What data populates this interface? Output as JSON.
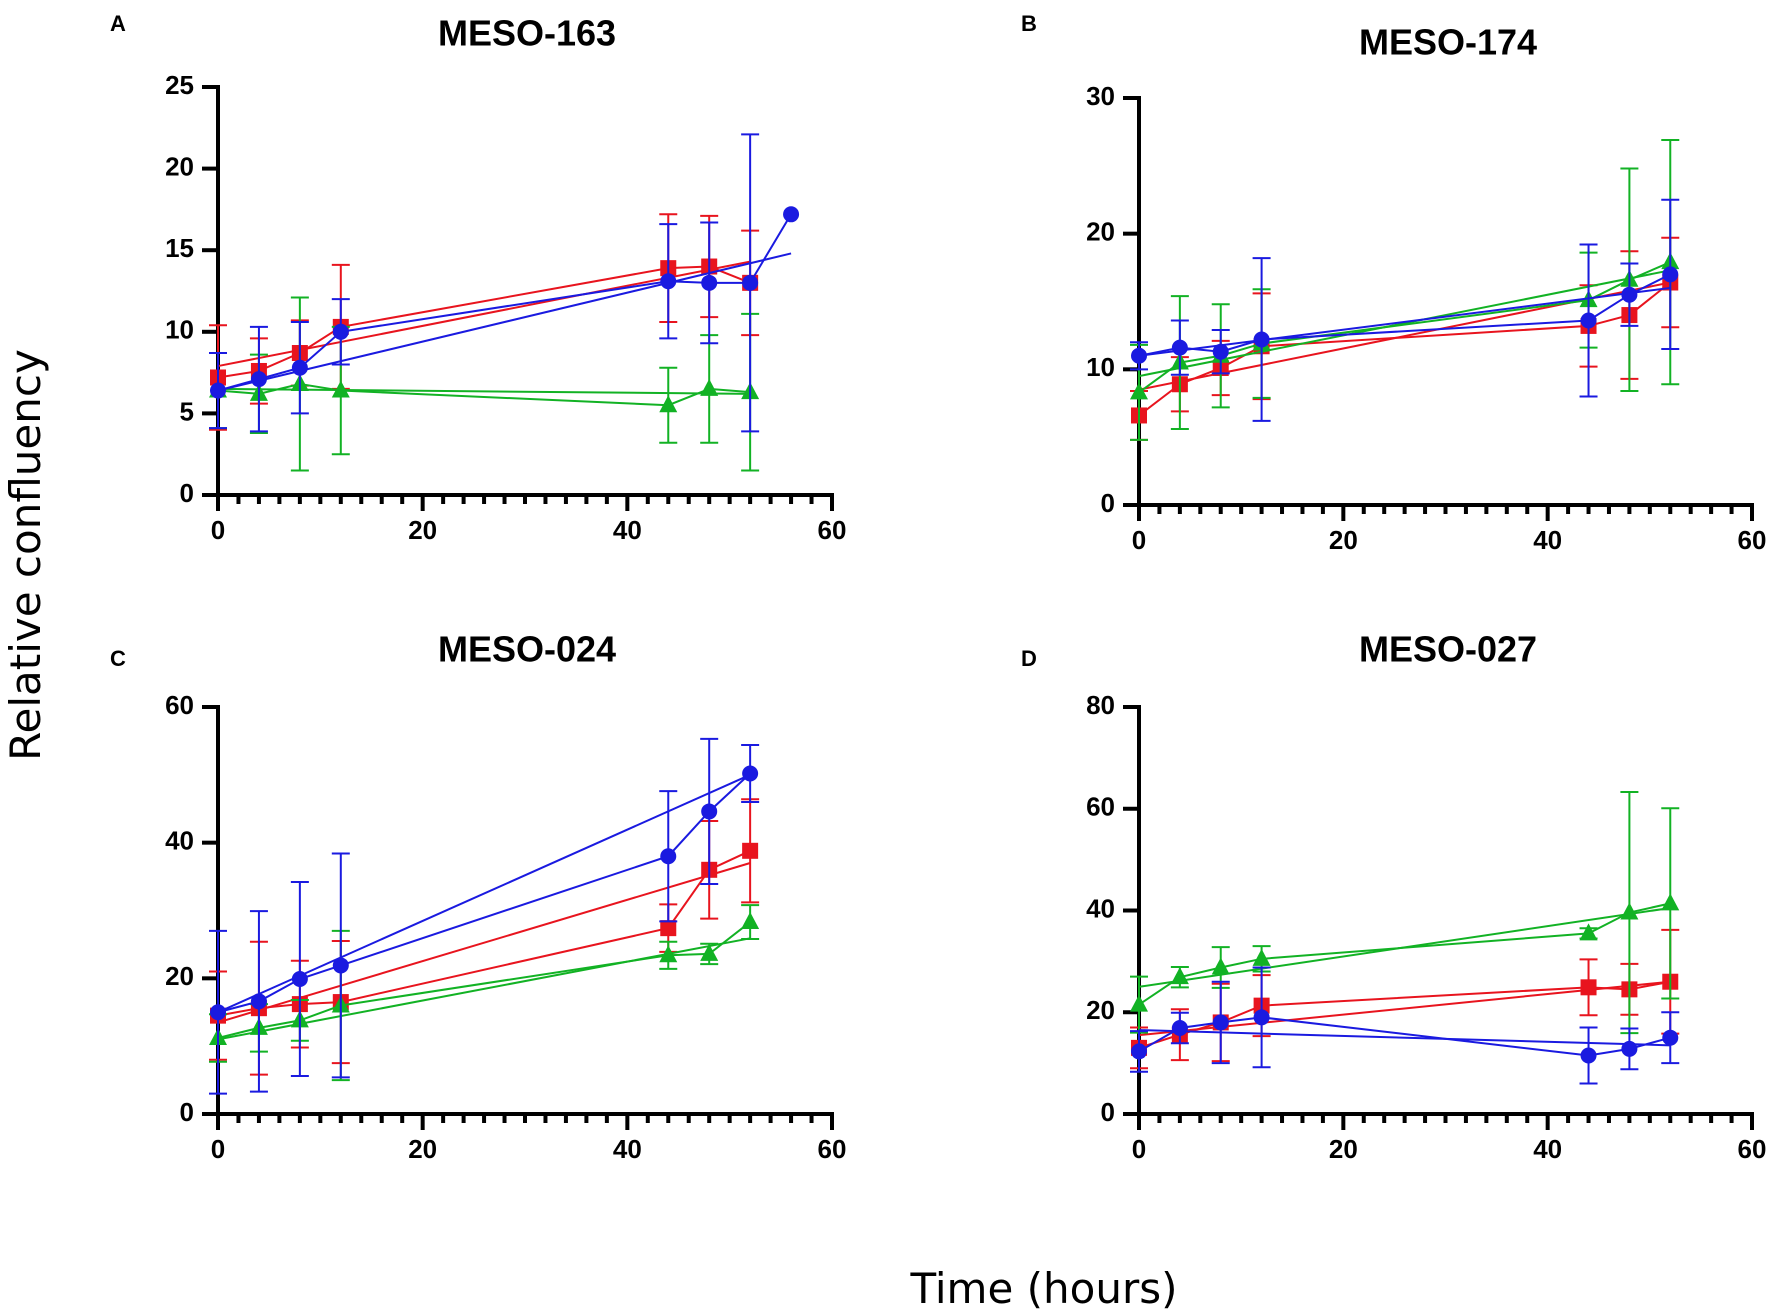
{
  "figure": {
    "ylabel": "Relative confluency",
    "xlabel": "Time (hours)"
  },
  "colors": {
    "red": "#e8141e",
    "green": "#12b224",
    "blue": "#1a1ae0"
  },
  "chart_data": [
    {
      "type": "line",
      "panel_letter": "A",
      "title": "MESO-163",
      "xlabel": "Time (hours)",
      "ylabel": "Relative confluency",
      "xlim": [
        0,
        60
      ],
      "ylim": [
        0,
        25
      ],
      "xticks": [
        0,
        20,
        40,
        60
      ],
      "yticks": [
        0,
        5,
        10,
        15,
        20,
        25
      ],
      "x_minor_step": 2,
      "series": [
        {
          "name": "red",
          "color": "#e8141e",
          "marker": "square",
          "x": [
            0,
            4,
            8,
            12,
            44,
            48,
            52
          ],
          "y": [
            7.2,
            7.6,
            8.7,
            10.3,
            13.9,
            14.0,
            13.0
          ],
          "err": [
            3.2,
            2.0,
            2.0,
            3.8,
            3.3,
            3.1,
            3.2
          ],
          "fit": [
            [
              0,
              7.9
            ],
            [
              52,
              14.3
            ]
          ]
        },
        {
          "name": "green",
          "color": "#12b224",
          "marker": "triangle",
          "x": [
            0,
            4,
            8,
            12,
            44,
            48,
            52
          ],
          "y": [
            6.4,
            6.2,
            6.8,
            6.4,
            5.5,
            6.5,
            6.3
          ],
          "err": [
            2.3,
            2.4,
            5.3,
            3.9,
            2.3,
            3.3,
            4.8
          ],
          "fit": [
            [
              0,
              6.5
            ],
            [
              52,
              6.2
            ]
          ]
        },
        {
          "name": "blue",
          "color": "#1a1ae0",
          "marker": "circle",
          "x": [
            0,
            4,
            8,
            12,
            44,
            48,
            52,
            56
          ],
          "y": [
            6.4,
            7.1,
            7.8,
            10.0,
            13.1,
            13.0,
            13.0,
            17.2
          ],
          "err": [
            2.3,
            3.2,
            2.8,
            2.0,
            3.5,
            3.7,
            9.1,
            0
          ],
          "fit": [
            [
              0,
              6.4
            ],
            [
              56,
              14.8
            ]
          ]
        }
      ]
    },
    {
      "type": "line",
      "panel_letter": "B",
      "title": "MESO-174",
      "xlabel": "Time (hours)",
      "ylabel": "Relative confluency",
      "xlim": [
        0,
        60
      ],
      "ylim": [
        0,
        30
      ],
      "xticks": [
        0,
        20,
        40,
        60
      ],
      "yticks": [
        0,
        10,
        20,
        30
      ],
      "x_minor_step": 2,
      "series": [
        {
          "name": "red",
          "color": "#e8141e",
          "marker": "square",
          "x": [
            0,
            4,
            8,
            12,
            44,
            48,
            52
          ],
          "y": [
            6.6,
            8.9,
            10.1,
            11.7,
            13.2,
            14.0,
            16.4
          ],
          "err": [
            1.8,
            2.0,
            2.0,
            3.9,
            3.0,
            4.7,
            3.3
          ],
          "fit": [
            [
              0,
              8.5
            ],
            [
              52,
              16.4
            ]
          ]
        },
        {
          "name": "green",
          "color": "#12b224",
          "marker": "triangle",
          "x": [
            0,
            4,
            8,
            12,
            44,
            48,
            52
          ],
          "y": [
            8.3,
            10.5,
            11.0,
            11.9,
            15.1,
            16.6,
            17.9
          ],
          "err": [
            3.5,
            4.9,
            3.8,
            4.0,
            3.5,
            8.2,
            9.0
          ],
          "fit": [
            [
              0,
              9.5
            ],
            [
              52,
              17.3
            ]
          ]
        },
        {
          "name": "blue",
          "color": "#1a1ae0",
          "marker": "circle",
          "x": [
            0,
            4,
            8,
            12,
            44,
            48,
            52
          ],
          "y": [
            11.0,
            11.6,
            11.3,
            12.2,
            13.6,
            15.5,
            17.0
          ],
          "err": [
            1.0,
            2.0,
            1.6,
            6.0,
            5.6,
            2.3,
            5.5
          ],
          "fit": [
            [
              0,
              11.0
            ],
            [
              52,
              16.0
            ]
          ]
        }
      ]
    },
    {
      "type": "line",
      "panel_letter": "C",
      "title": "MESO-024",
      "xlabel": "Time (hours)",
      "ylabel": "Relative confluency",
      "xlim": [
        0,
        60
      ],
      "ylim": [
        0,
        60
      ],
      "xticks": [
        0,
        20,
        40,
        60
      ],
      "yticks": [
        0,
        20,
        40,
        60
      ],
      "x_minor_step": 2,
      "series": [
        {
          "name": "red",
          "color": "#e8141e",
          "marker": "square",
          "x": [
            0,
            4,
            8,
            12,
            44,
            48,
            52
          ],
          "y": [
            14.5,
            15.6,
            16.2,
            16.5,
            27.4,
            36.0,
            38.8
          ],
          "err": [
            6.5,
            9.8,
            6.4,
            9.0,
            3.5,
            7.2,
            7.6
          ],
          "fit": [
            [
              0,
              13.5
            ],
            [
              52,
              37.0
            ]
          ]
        },
        {
          "name": "green",
          "color": "#12b224",
          "marker": "triangle",
          "x": [
            0,
            4,
            8,
            12,
            44,
            48,
            52
          ],
          "y": [
            11.2,
            12.7,
            13.8,
            16.0,
            23.4,
            23.6,
            28.3
          ],
          "err": [
            3.5,
            3.5,
            3.0,
            11.0,
            2.0,
            1.5,
            2.5
          ],
          "fit": [
            [
              0,
              11.0
            ],
            [
              52,
              25.9
            ]
          ]
        },
        {
          "name": "blue",
          "color": "#1a1ae0",
          "marker": "circle",
          "x": [
            0,
            4,
            8,
            12,
            44,
            48,
            52
          ],
          "y": [
            15.0,
            16.6,
            19.9,
            21.9,
            38.0,
            44.6,
            50.2
          ],
          "err": [
            12.0,
            13.3,
            14.3,
            16.5,
            9.6,
            10.7,
            4.2
          ],
          "fit": [
            [
              0,
              15.0
            ],
            [
              52,
              50.0
            ]
          ]
        }
      ]
    },
    {
      "type": "line",
      "panel_letter": "D",
      "title": "MESO-027",
      "xlabel": "Time (hours)",
      "ylabel": "Relative confluency",
      "xlim": [
        0,
        60
      ],
      "ylim": [
        0,
        80
      ],
      "xticks": [
        0,
        20,
        40,
        60
      ],
      "yticks": [
        0,
        20,
        40,
        60,
        80
      ],
      "x_minor_step": 2,
      "series": [
        {
          "name": "red",
          "color": "#e8141e",
          "marker": "square",
          "x": [
            0,
            4,
            8,
            12,
            44,
            48,
            52
          ],
          "y": [
            13.0,
            15.6,
            18.0,
            21.3,
            24.9,
            24.5,
            26.0
          ],
          "err": [
            4.0,
            5.0,
            7.6,
            6.0,
            5.5,
            5.0,
            10.2
          ],
          "fit": [
            [
              0,
              15.5
            ],
            [
              52,
              26.0
            ]
          ]
        },
        {
          "name": "green",
          "color": "#12b224",
          "marker": "triangle",
          "x": [
            0,
            4,
            8,
            12,
            44,
            48,
            52
          ],
          "y": [
            21.5,
            26.9,
            28.8,
            30.5,
            35.5,
            39.6,
            41.4
          ],
          "err": [
            5.5,
            2.0,
            4.0,
            2.5,
            1.0,
            23.7,
            18.7
          ],
          "fit": [
            [
              0,
              25.0
            ],
            [
              52,
              40.5
            ]
          ]
        },
        {
          "name": "blue",
          "color": "#1a1ae0",
          "marker": "circle",
          "x": [
            0,
            4,
            8,
            12,
            44,
            48,
            52
          ],
          "y": [
            12.3,
            16.9,
            18.0,
            19.0,
            11.5,
            12.8,
            15.0
          ],
          "err": [
            4.0,
            3.0,
            8.0,
            9.8,
            5.5,
            4.0,
            5.0
          ],
          "fit": [
            [
              0,
              16.5
            ],
            [
              52,
              13.5
            ]
          ]
        }
      ]
    }
  ]
}
